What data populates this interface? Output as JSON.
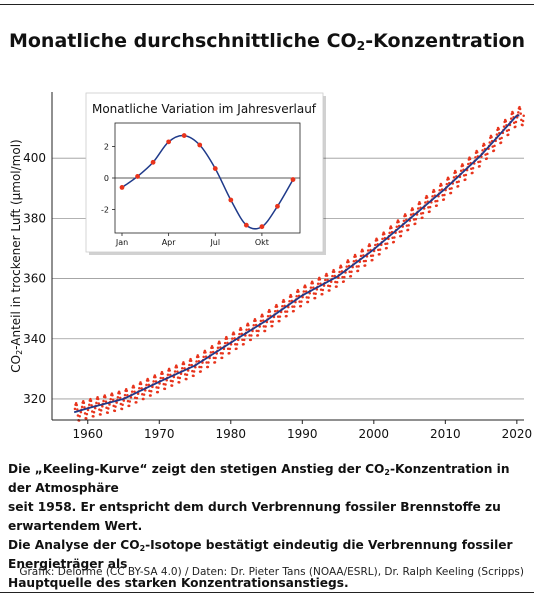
{
  "title": {
    "pre": "Monatliche durchschnittliche CO",
    "sub": "2",
    "post": "-Konzentration"
  },
  "caption": {
    "l1_pre": "Die „Keeling-Kurve“ zeigt den stetigen Anstieg der CO",
    "l1_sub": "2",
    "l1_post": "-Konzentration in der Atmosphäre",
    "l2": "seit 1958. Er entspricht dem durch Verbrennung fossiler Brennstoffe zu erwartendem Wert.",
    "l3_pre": "Die Analyse der CO",
    "l3_sub": "2",
    "l3_post": "-Isotope bestätigt eindeutig die Verbrennung fossiler Energieträger als",
    "l4": "Hauptquelle des starken Konzentrationsanstiegs."
  },
  "credit": "Grafik: Delorme (CC BY-SA 4.0) / Daten: Dr. Pieter Tans (NOAA/ESRL), Dr. Ralph Keeling (Scripps)",
  "colors": {
    "trend": "#1f3a8a",
    "monthly": "#e8341c",
    "grid": "#999999",
    "axis": "#222222"
  },
  "chart_data": [
    {
      "type": "line",
      "ylabel": {
        "pre": "CO",
        "sub": "2",
        "post": "-Anteil in trockener Luft (µmol/mol)"
      },
      "xlim": [
        1955,
        2021
      ],
      "ylim": [
        313,
        422
      ],
      "xticks": [
        1960,
        1970,
        1980,
        1990,
        2000,
        2010,
        2020
      ],
      "yticks": [
        320,
        340,
        360,
        380,
        400
      ],
      "grid": "horizontal",
      "trend_points": [
        [
          1958,
          315.5
        ],
        [
          1960,
          316.9
        ],
        [
          1965,
          320.0
        ],
        [
          1970,
          325.7
        ],
        [
          1975,
          331.1
        ],
        [
          1980,
          338.7
        ],
        [
          1985,
          346.1
        ],
        [
          1990,
          354.4
        ],
        [
          1995,
          360.8
        ],
        [
          2000,
          369.7
        ],
        [
          2005,
          379.8
        ],
        [
          2010,
          389.9
        ],
        [
          2015,
          401.0
        ],
        [
          2020,
          414.2
        ]
      ],
      "seasonal_amplitude": 3.2,
      "series": [
        {
          "name": "",
          "style": "monthly-dots"
        },
        {
          "name": "",
          "style": "trend-line"
        }
      ]
    },
    {
      "type": "line",
      "title": "Monatliche Variation im Jahresverlauf",
      "xticklabels": [
        "Jan",
        "Apr",
        "Jul",
        "Okt"
      ],
      "xtick_months": [
        1,
        4,
        7,
        10
      ],
      "yticks": [
        -2,
        0,
        2
      ],
      "ylim": [
        -3.5,
        3.5
      ],
      "months": [
        1,
        2,
        3,
        4,
        5,
        6,
        7,
        8,
        9,
        10,
        11,
        12
      ],
      "values": [
        -0.6,
        0.1,
        1.0,
        2.3,
        2.7,
        2.1,
        0.6,
        -1.4,
        -3.0,
        -3.1,
        -1.8,
        -0.1
      ]
    }
  ]
}
